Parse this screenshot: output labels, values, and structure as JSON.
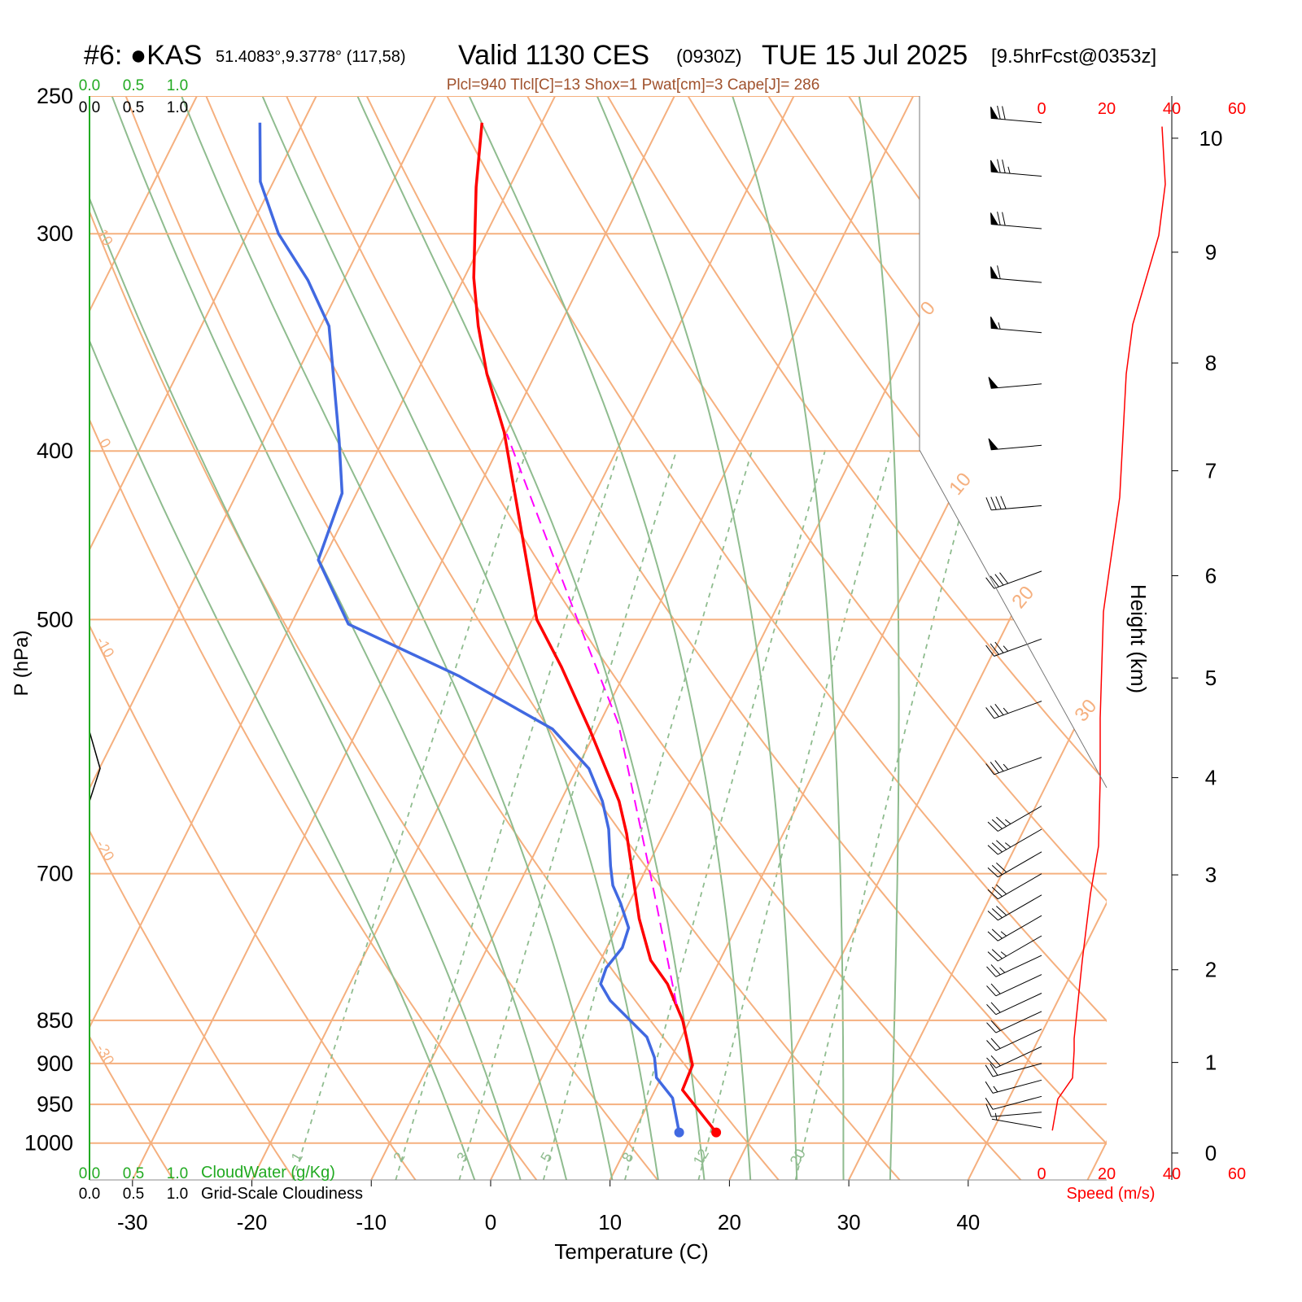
{
  "chart_data": {
    "type": "skewt",
    "title": {
      "station": "#6: ●KAS",
      "location": "51.4083°,9.3778° (117,58)",
      "valid": "Valid 1130 CES",
      "utc": "(0930Z)",
      "date": "TUE 15 Jul 2025",
      "forecast": "[9.5hrFcst@0353z]"
    },
    "subtitle": "Plcl=940 Tlcl[C]=13 Shox=1 Pwat[cm]=3 Cape[J]= 286",
    "xlabel": "Temperature (C)",
    "ylabel": "P (hPa)",
    "xlim": [
      -33.6,
      51.6
    ],
    "xticks": [
      -30,
      -20,
      -10,
      0,
      10,
      20,
      30,
      40
    ],
    "ylim": [
      1050,
      250
    ],
    "ylog": true,
    "yticks": [
      250,
      300,
      400,
      500,
      700,
      850,
      900,
      950,
      1000
    ],
    "grid": true,
    "series": [
      {
        "color": "#ff0000",
        "width": 3.5,
        "marker": true,
        "pressure": [
          986,
          932,
          902,
          850,
          810,
          785,
          743,
          664,
          636,
          580,
          532,
          500,
          390,
          361,
          339,
          318,
          282,
          259
        ],
        "values": [
          16.9,
          12.3,
          12.1,
          9.4,
          6.6,
          4.2,
          1.5,
          -3.1,
          -5.1,
          -10.4,
          -15.6,
          -19.6,
          -30.2,
          -34.1,
          -36.8,
          -39.2,
          -42.8,
          -45.0
        ]
      },
      {
        "color": "#4169e1",
        "width": 3.5,
        "marker": true,
        "pressure": [
          986,
          942,
          917,
          893,
          869,
          828,
          810,
          793,
          772,
          752,
          728,
          711,
          693,
          660,
          636,
          609,
          578,
          539,
          503,
          462,
          423,
          394,
          339,
          319,
          300,
          280,
          259
        ],
        "values": [
          13.8,
          11.8,
          9.6,
          8.6,
          7.1,
          2.5,
          1.0,
          0.8,
          1.3,
          1.0,
          -0.7,
          -2.1,
          -3.1,
          -4.8,
          -6.5,
          -9.0,
          -13.7,
          -23.7,
          -35.2,
          -40.4,
          -41.2,
          -43.7,
          -49.3,
          -53.0,
          -57.4,
          -61.1,
          -63.6
        ]
      },
      {
        "color": "#ff00ff",
        "width": 2,
        "dashed": true,
        "marker": false,
        "pressure": [
          832,
          704,
          574,
          500,
          434,
          391
        ],
        "values": [
          8.2,
          0.8,
          -8.4,
          -16.2,
          -24.1,
          -29.9
        ]
      }
    ],
    "isotherms": [
      -70,
      -60,
      -50,
      -40,
      -30,
      -20,
      -10,
      0,
      10,
      20,
      30,
      40,
      50
    ],
    "isotherm_color": "#f5b07f",
    "dry_adiabats": [
      -30,
      -20,
      -10,
      0,
      10,
      20,
      30,
      40,
      50,
      60,
      70,
      80,
      90,
      100,
      110
    ],
    "dry_adiabat_color": "#f5b07f",
    "moist_adiabats": [
      -4,
      0,
      4,
      8,
      12,
      16,
      20,
      24,
      28,
      32
    ],
    "moist_adiabat_color": "#8fbc8f",
    "mixing_ratios": [
      1,
      2,
      3,
      5,
      8,
      12,
      20
    ],
    "mixing_ratio_color": "#8fbc8f",
    "cloud_water_label": "CloudWater (g/Kg)",
    "cloud_water_color": "#22aa22",
    "cloud_water_ticks": [
      {
        "value": 0,
        "label": "0.0"
      },
      0.5,
      {
        "value": 1,
        "label": "1.0"
      }
    ],
    "cloudiness_label": "Grid-Scale Cloudiness",
    "cloudiness_color": "#000000",
    "cloudiness_ticks": [
      {
        "value": 0,
        "label": "0.0"
      },
      0.5,
      {
        "value": 1,
        "label": "1.0"
      }
    ],
    "cloudiness": {
      "pressure": [
        580,
        609,
        636
      ],
      "values": [
        0,
        0.12,
        0
      ]
    },
    "wind_barbs": {
      "pressure": [
        259,
        278,
        298,
        320,
        342,
        366,
        397,
        430,
        469,
        513,
        557,
        600,
        640,
        660,
        680,
        700,
        720,
        740,
        760,
        780,
        800,
        820,
        840,
        860,
        880,
        900,
        920,
        940,
        960,
        980
      ],
      "direction": [
        275,
        275,
        275,
        275,
        275,
        265,
        265,
        265,
        250,
        250,
        250,
        250,
        240,
        240,
        240,
        240,
        240,
        240,
        240,
        245,
        245,
        245,
        245,
        245,
        245,
        255,
        255,
        255,
        265,
        280
      ],
      "speed": [
        37,
        38,
        36,
        32,
        29,
        27,
        25,
        22,
        20,
        19,
        18,
        18,
        18,
        18,
        17,
        16,
        15,
        14,
        13,
        12.5,
        12,
        11,
        11,
        10,
        10,
        10,
        9,
        7,
        5,
        3
      ]
    },
    "wind_speed": {
      "color": "#ff0000",
      "height": [
        0.25,
        0.6,
        0.83,
        1.13,
        1.26,
        2.1,
        2.8,
        3.3,
        3.98,
        4.6,
        5.65,
        6.1,
        6.75,
        7.9,
        8.35,
        9.15,
        9.6,
        10.1
      ],
      "values": [
        3.3,
        5,
        9.5,
        10,
        10,
        12.5,
        15,
        17.5,
        18,
        18,
        19,
        21,
        24,
        26,
        28,
        36,
        38,
        37
      ]
    },
    "speed_label": "Speed (m/s)",
    "speed_lim": [
      0,
      60
    ],
    "speed_ticks": [
      0,
      20,
      40,
      60
    ],
    "height_label": "Height (km)",
    "height_ticks": [
      0,
      1,
      2,
      3,
      4,
      5,
      6,
      7,
      8,
      9,
      10
    ]
  }
}
